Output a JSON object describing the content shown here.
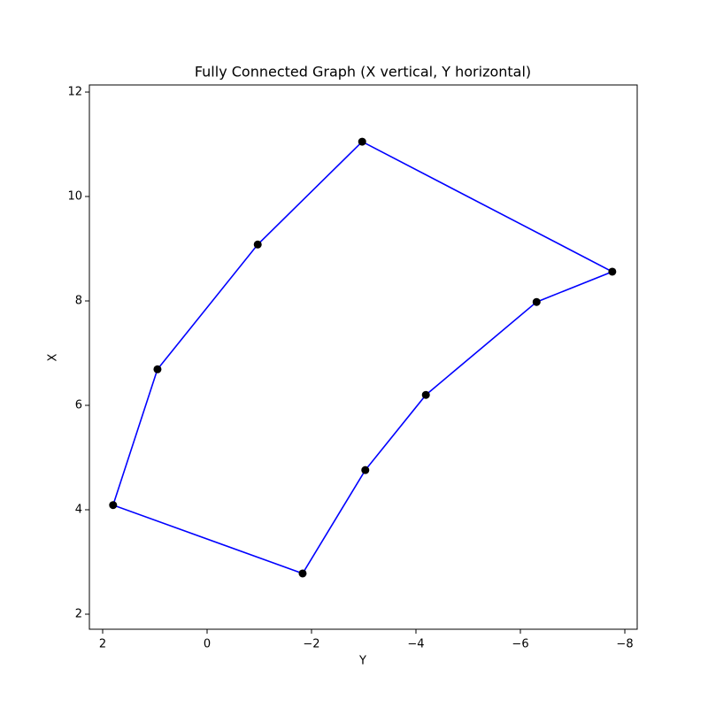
{
  "chart_data": {
    "type": "line",
    "title": "Fully Connected Graph (X vertical, Y horizontal)",
    "x_label": "Y",
    "y_label": "X",
    "x": [
      1.8,
      0.95,
      -0.97,
      -2.97,
      -7.76,
      -6.31,
      -4.19,
      -3.03,
      -1.83
    ],
    "values": [
      4.09,
      6.69,
      9.08,
      11.05,
      8.56,
      7.98,
      6.2,
      4.76,
      2.78
    ],
    "closed": true,
    "line_color": "#0000ff",
    "marker_color": "#000000",
    "xlim": [
      2.254,
      -8.237
    ],
    "xticks": [
      2,
      0,
      {
        "value": -2,
        "label": "−2"
      },
      {
        "value": -4,
        "label": "−4"
      },
      {
        "value": -6,
        "label": "−6"
      },
      {
        "value": -8,
        "label": "−8"
      }
    ],
    "ylim": [
      1.712,
      12.136
    ],
    "yticks": [
      2,
      4,
      6,
      8,
      10,
      12
    ]
  }
}
